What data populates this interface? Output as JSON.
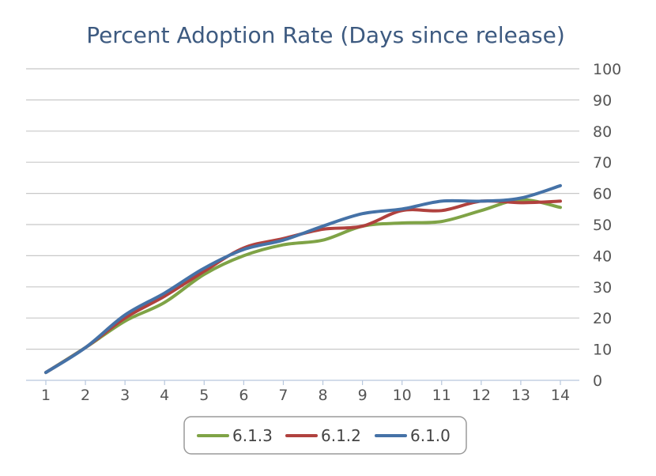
{
  "chart_data": {
    "type": "line",
    "title": "Percent Adoption Rate (Days since release)",
    "xlabel": "",
    "ylabel": "",
    "x": [
      1,
      2,
      3,
      4,
      5,
      6,
      7,
      8,
      9,
      10,
      11,
      12,
      13,
      14
    ],
    "x_tick_labels": [
      "1",
      "2",
      "3",
      "4",
      "5",
      "6",
      "7",
      "8",
      "9",
      "10",
      "11",
      "12",
      "13",
      "14"
    ],
    "ylim": [
      0,
      100
    ],
    "y_ticks": [
      0,
      10,
      20,
      30,
      40,
      50,
      60,
      70,
      80,
      90,
      100
    ],
    "y_tick_labels": [
      "0",
      "10",
      "20",
      "30",
      "40",
      "50",
      "60",
      "70",
      "80",
      "90",
      "100"
    ],
    "y_axis_side": "right",
    "grid": true,
    "legend_position": "bottom-center",
    "series": [
      {
        "name": "6.1.3",
        "color": "#7fa346",
        "values": [
          2.5,
          10.5,
          19,
          25,
          34,
          40,
          43.5,
          45,
          49.5,
          50.5,
          51,
          54.5,
          58,
          55.5
        ]
      },
      {
        "name": "6.1.2",
        "color": "#b0413e",
        "values": [
          2.5,
          10.5,
          20,
          27,
          35,
          42.5,
          45.5,
          48.5,
          49.5,
          54.5,
          54.5,
          57.5,
          57,
          57.5
        ]
      },
      {
        "name": "6.1.0",
        "color": "#4572a7",
        "values": [
          2.5,
          10.5,
          21,
          28,
          36,
          42,
          45,
          49.5,
          53.5,
          55,
          57.5,
          57.5,
          58.5,
          62.5
        ]
      }
    ]
  }
}
